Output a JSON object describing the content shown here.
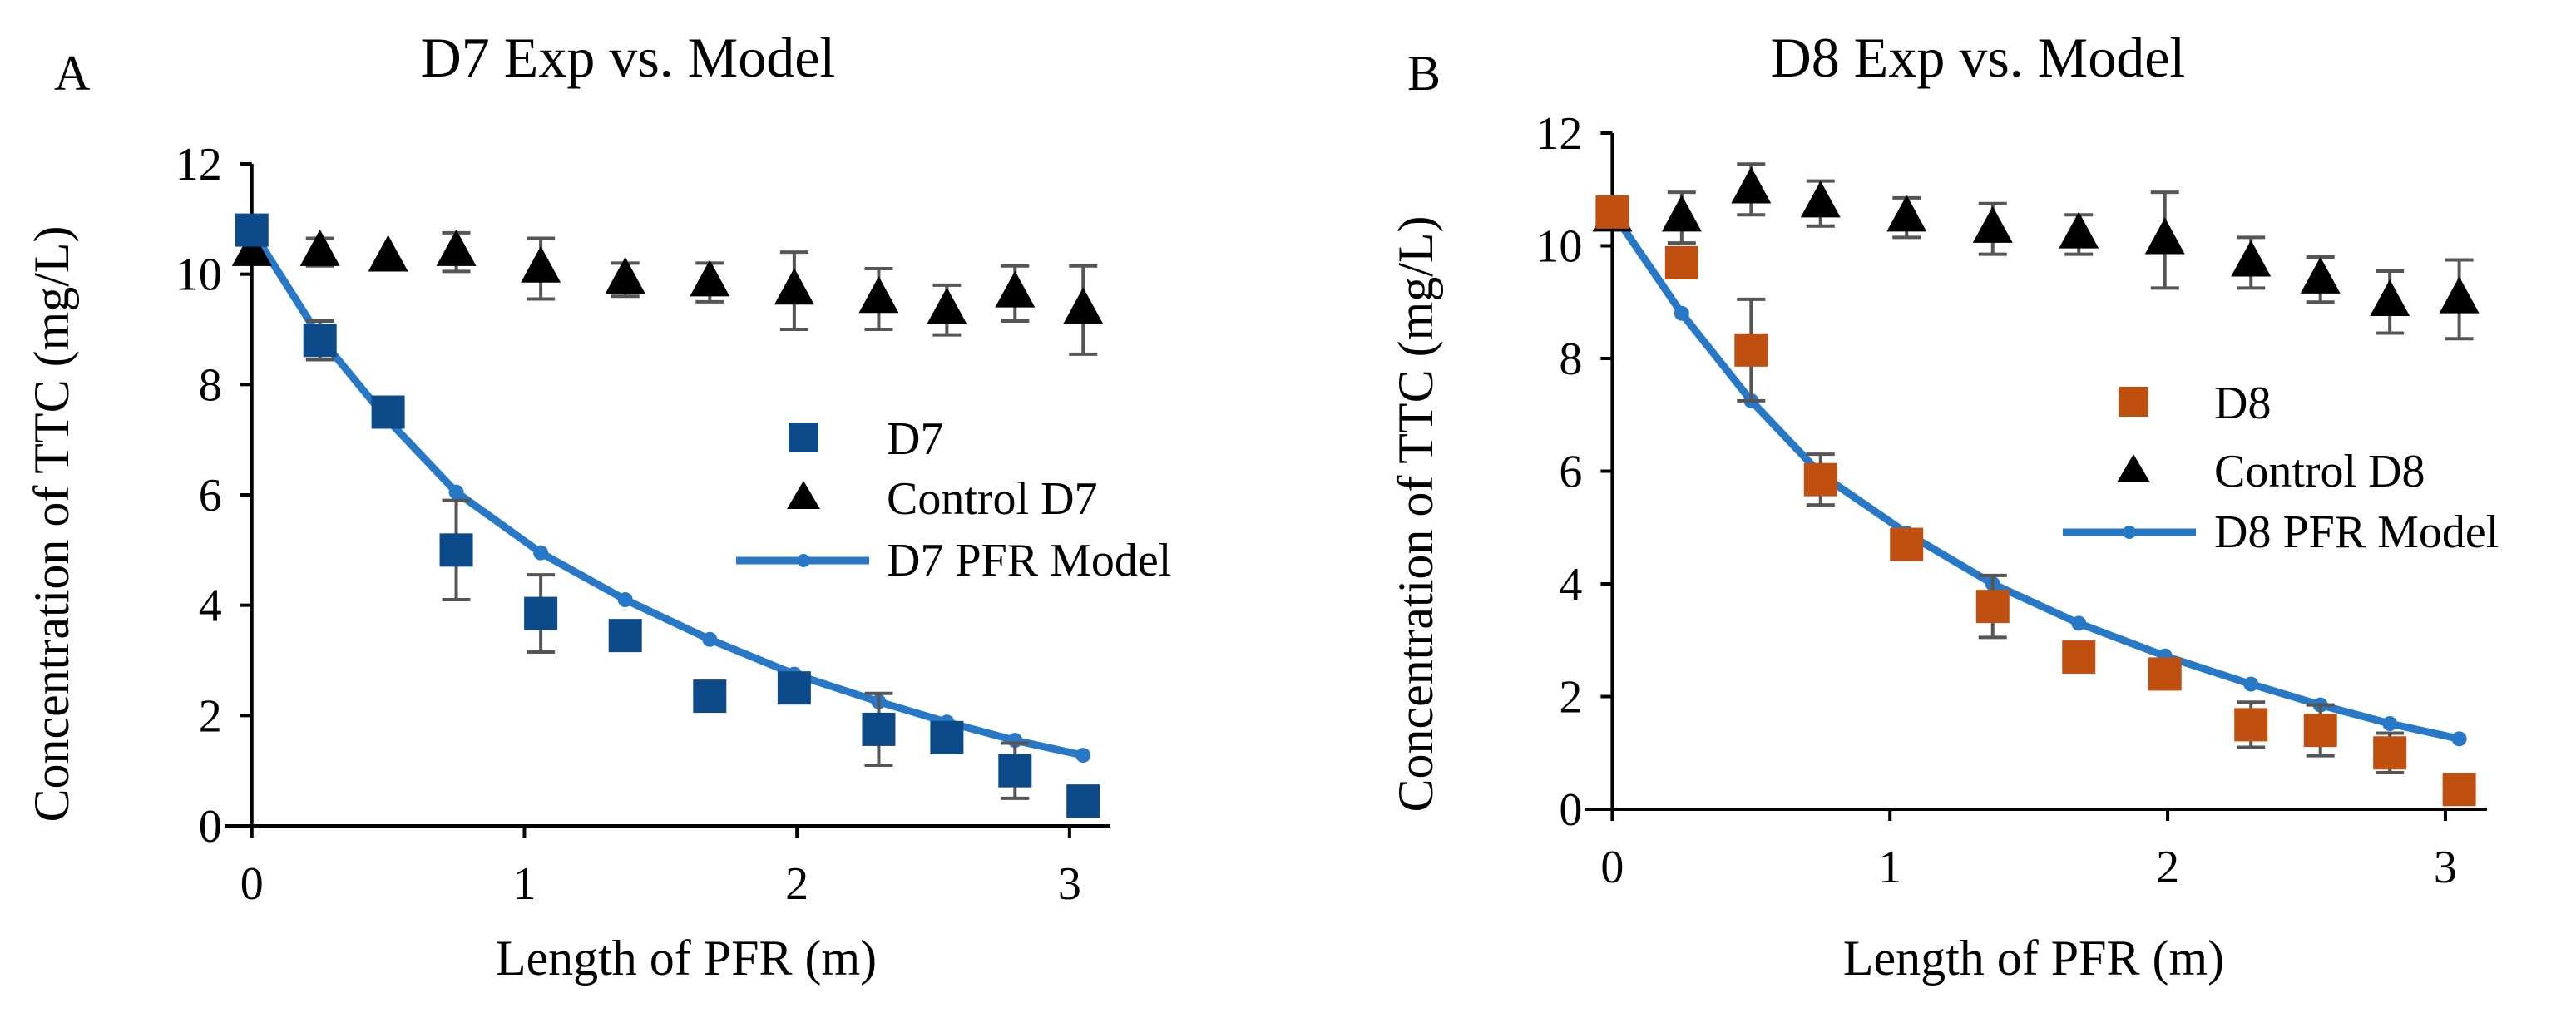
{
  "chart_data": [
    {
      "type": "scatter",
      "panel_label": "A",
      "title": "D7 Exp vs. Model",
      "xlabel": "Length of PFR (m)",
      "ylabel": "Concentration of TTC (mg/L)",
      "xlim": [
        -0.1,
        3.15
      ],
      "ylim": [
        0,
        12
      ],
      "xticks": [
        "0",
        "1",
        "2",
        "3"
      ],
      "yticks": [
        "0",
        "2",
        "4",
        "6",
        "8",
        "10",
        "12"
      ],
      "legend_position": "center-right",
      "series": [
        {
          "name": "D7",
          "marker": "square",
          "color": "#0d4a8a",
          "x": [
            0,
            0.25,
            0.5,
            0.75,
            1.06,
            1.37,
            1.68,
            1.99,
            2.3,
            2.55,
            2.8,
            3.05
          ],
          "y": [
            10.8,
            8.8,
            7.5,
            5.0,
            3.85,
            3.45,
            2.35,
            2.5,
            1.75,
            1.6,
            1.0,
            0.45
          ],
          "err": [
            0,
            0.35,
            0,
            0.9,
            0.7,
            0,
            0,
            0,
            0.65,
            0,
            0.5,
            0
          ]
        },
        {
          "name": "Control D7",
          "marker": "triangle",
          "color": "#000000",
          "x": [
            0,
            0.25,
            0.5,
            0.75,
            1.06,
            1.37,
            1.68,
            1.99,
            2.3,
            2.55,
            2.8,
            3.05
          ],
          "y": [
            10.4,
            10.4,
            10.3,
            10.4,
            10.1,
            9.9,
            9.85,
            9.7,
            9.55,
            9.35,
            9.65,
            9.35
          ],
          "err": [
            0,
            0.25,
            0,
            0.35,
            0.55,
            0.3,
            0.35,
            0.7,
            0.55,
            0.45,
            0.5,
            0.8
          ]
        },
        {
          "name": "D7 PFR Model",
          "marker": "line-dot",
          "color": "#2878c8",
          "x": [
            0,
            0.25,
            0.5,
            0.75,
            1.06,
            1.37,
            1.68,
            1.99,
            2.3,
            2.55,
            2.8,
            3.05
          ],
          "y": [
            10.8,
            8.85,
            7.35,
            6.05,
            4.95,
            4.1,
            3.38,
            2.75,
            2.25,
            1.88,
            1.55,
            1.28
          ]
        }
      ]
    },
    {
      "type": "scatter",
      "panel_label": "B",
      "title": "D8 Exp vs. Model",
      "xlabel": "Length of PFR (m)",
      "ylabel": "Concentration of TTC (mg/L)",
      "xlim": [
        -0.1,
        3.15
      ],
      "ylim": [
        0,
        12
      ],
      "xticks": [
        "0",
        "1",
        "2",
        "3"
      ],
      "yticks": [
        "0",
        "2",
        "4",
        "6",
        "8",
        "10",
        "12"
      ],
      "legend_position": "center-right",
      "series": [
        {
          "name": "D8",
          "marker": "square",
          "color": "#c0500f",
          "x": [
            0,
            0.25,
            0.5,
            0.75,
            1.06,
            1.37,
            1.68,
            1.99,
            2.3,
            2.55,
            2.8,
            3.05
          ],
          "y": [
            10.6,
            9.7,
            8.15,
            5.85,
            4.7,
            3.6,
            2.7,
            2.4,
            1.5,
            1.4,
            1.0,
            0.35
          ],
          "err": [
            0,
            0,
            0.9,
            0.45,
            0,
            0.55,
            0,
            0,
            0.4,
            0.45,
            0.35,
            0
          ]
        },
        {
          "name": "Control D8",
          "marker": "triangle",
          "color": "#000000",
          "x": [
            0,
            0.25,
            0.5,
            0.75,
            1.06,
            1.37,
            1.68,
            1.99,
            2.3,
            2.55,
            2.8,
            3.05
          ],
          "y": [
            10.5,
            10.5,
            11.0,
            10.75,
            10.5,
            10.3,
            10.2,
            10.1,
            9.7,
            9.4,
            9.0,
            9.05
          ],
          "err": [
            0,
            0.45,
            0.45,
            0.4,
            0.35,
            0.45,
            0.35,
            0.85,
            0.45,
            0.4,
            0.55,
            0.7
          ]
        },
        {
          "name": "D8 PFR Model",
          "marker": "line-dot",
          "color": "#2878c8",
          "x": [
            0,
            0.25,
            0.5,
            0.75,
            1.06,
            1.37,
            1.68,
            1.99,
            2.3,
            2.55,
            2.8,
            3.05
          ],
          "y": [
            10.6,
            8.8,
            7.25,
            5.95,
            4.9,
            4.0,
            3.3,
            2.72,
            2.22,
            1.85,
            1.52,
            1.25
          ]
        }
      ]
    }
  ]
}
